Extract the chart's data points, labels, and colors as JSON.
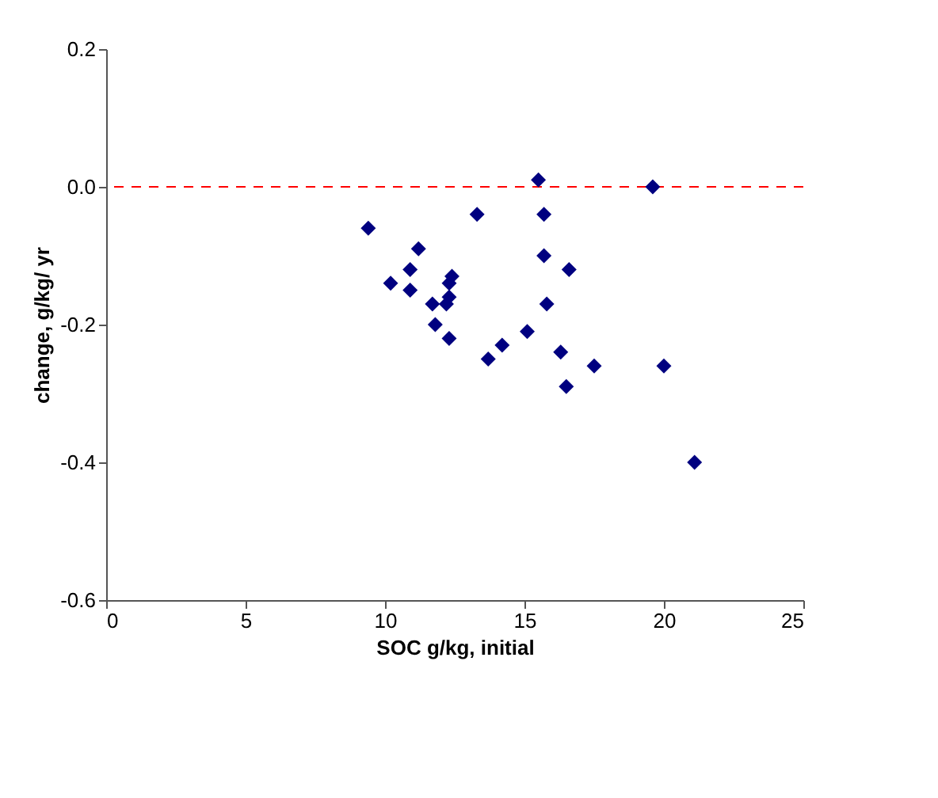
{
  "chart_data": {
    "type": "scatter",
    "xlabel": "SOC g/kg, initial",
    "ylabel": "change, g/kg/ yr",
    "x": [
      9.4,
      10.2,
      10.9,
      10.9,
      11.2,
      11.7,
      11.8,
      12.2,
      12.3,
      12.3,
      12.4,
      12.3,
      13.3,
      13.7,
      14.2,
      15.1,
      15.5,
      15.7,
      15.7,
      15.8,
      16.3,
      16.6,
      16.5,
      17.5,
      19.6,
      20.0,
      21.1
    ],
    "series": [
      {
        "color": "#000080",
        "values": [
          -0.06,
          -0.14,
          -0.12,
          -0.15,
          -0.09,
          -0.17,
          -0.2,
          -0.17,
          -0.16,
          -0.14,
          -0.13,
          -0.22,
          -0.04,
          -0.25,
          -0.23,
          -0.21,
          0.01,
          -0.04,
          -0.1,
          -0.17,
          -0.24,
          -0.12,
          -0.29,
          -0.26,
          0.0,
          -0.26,
          -0.4
        ]
      }
    ],
    "xlim": [
      0,
      25
    ],
    "xticks": [
      0,
      5,
      10,
      15,
      20,
      25
    ],
    "ylim": [
      -0.6,
      0.2
    ],
    "yticks": [
      {
        "value": -0.6,
        "label": "-0.6"
      },
      {
        "value": -0.4,
        "label": "-0.4"
      },
      {
        "value": -0.2,
        "label": "-0.2"
      },
      {
        "value": 0,
        "label": "0.0"
      },
      {
        "value": 0.2,
        "label": "0.2"
      }
    ],
    "marker": "diamond",
    "grid": false,
    "ref_lines": [
      {
        "axis": "y",
        "value": 0,
        "color": "#ff0000",
        "line_style": "dashed"
      }
    ]
  }
}
